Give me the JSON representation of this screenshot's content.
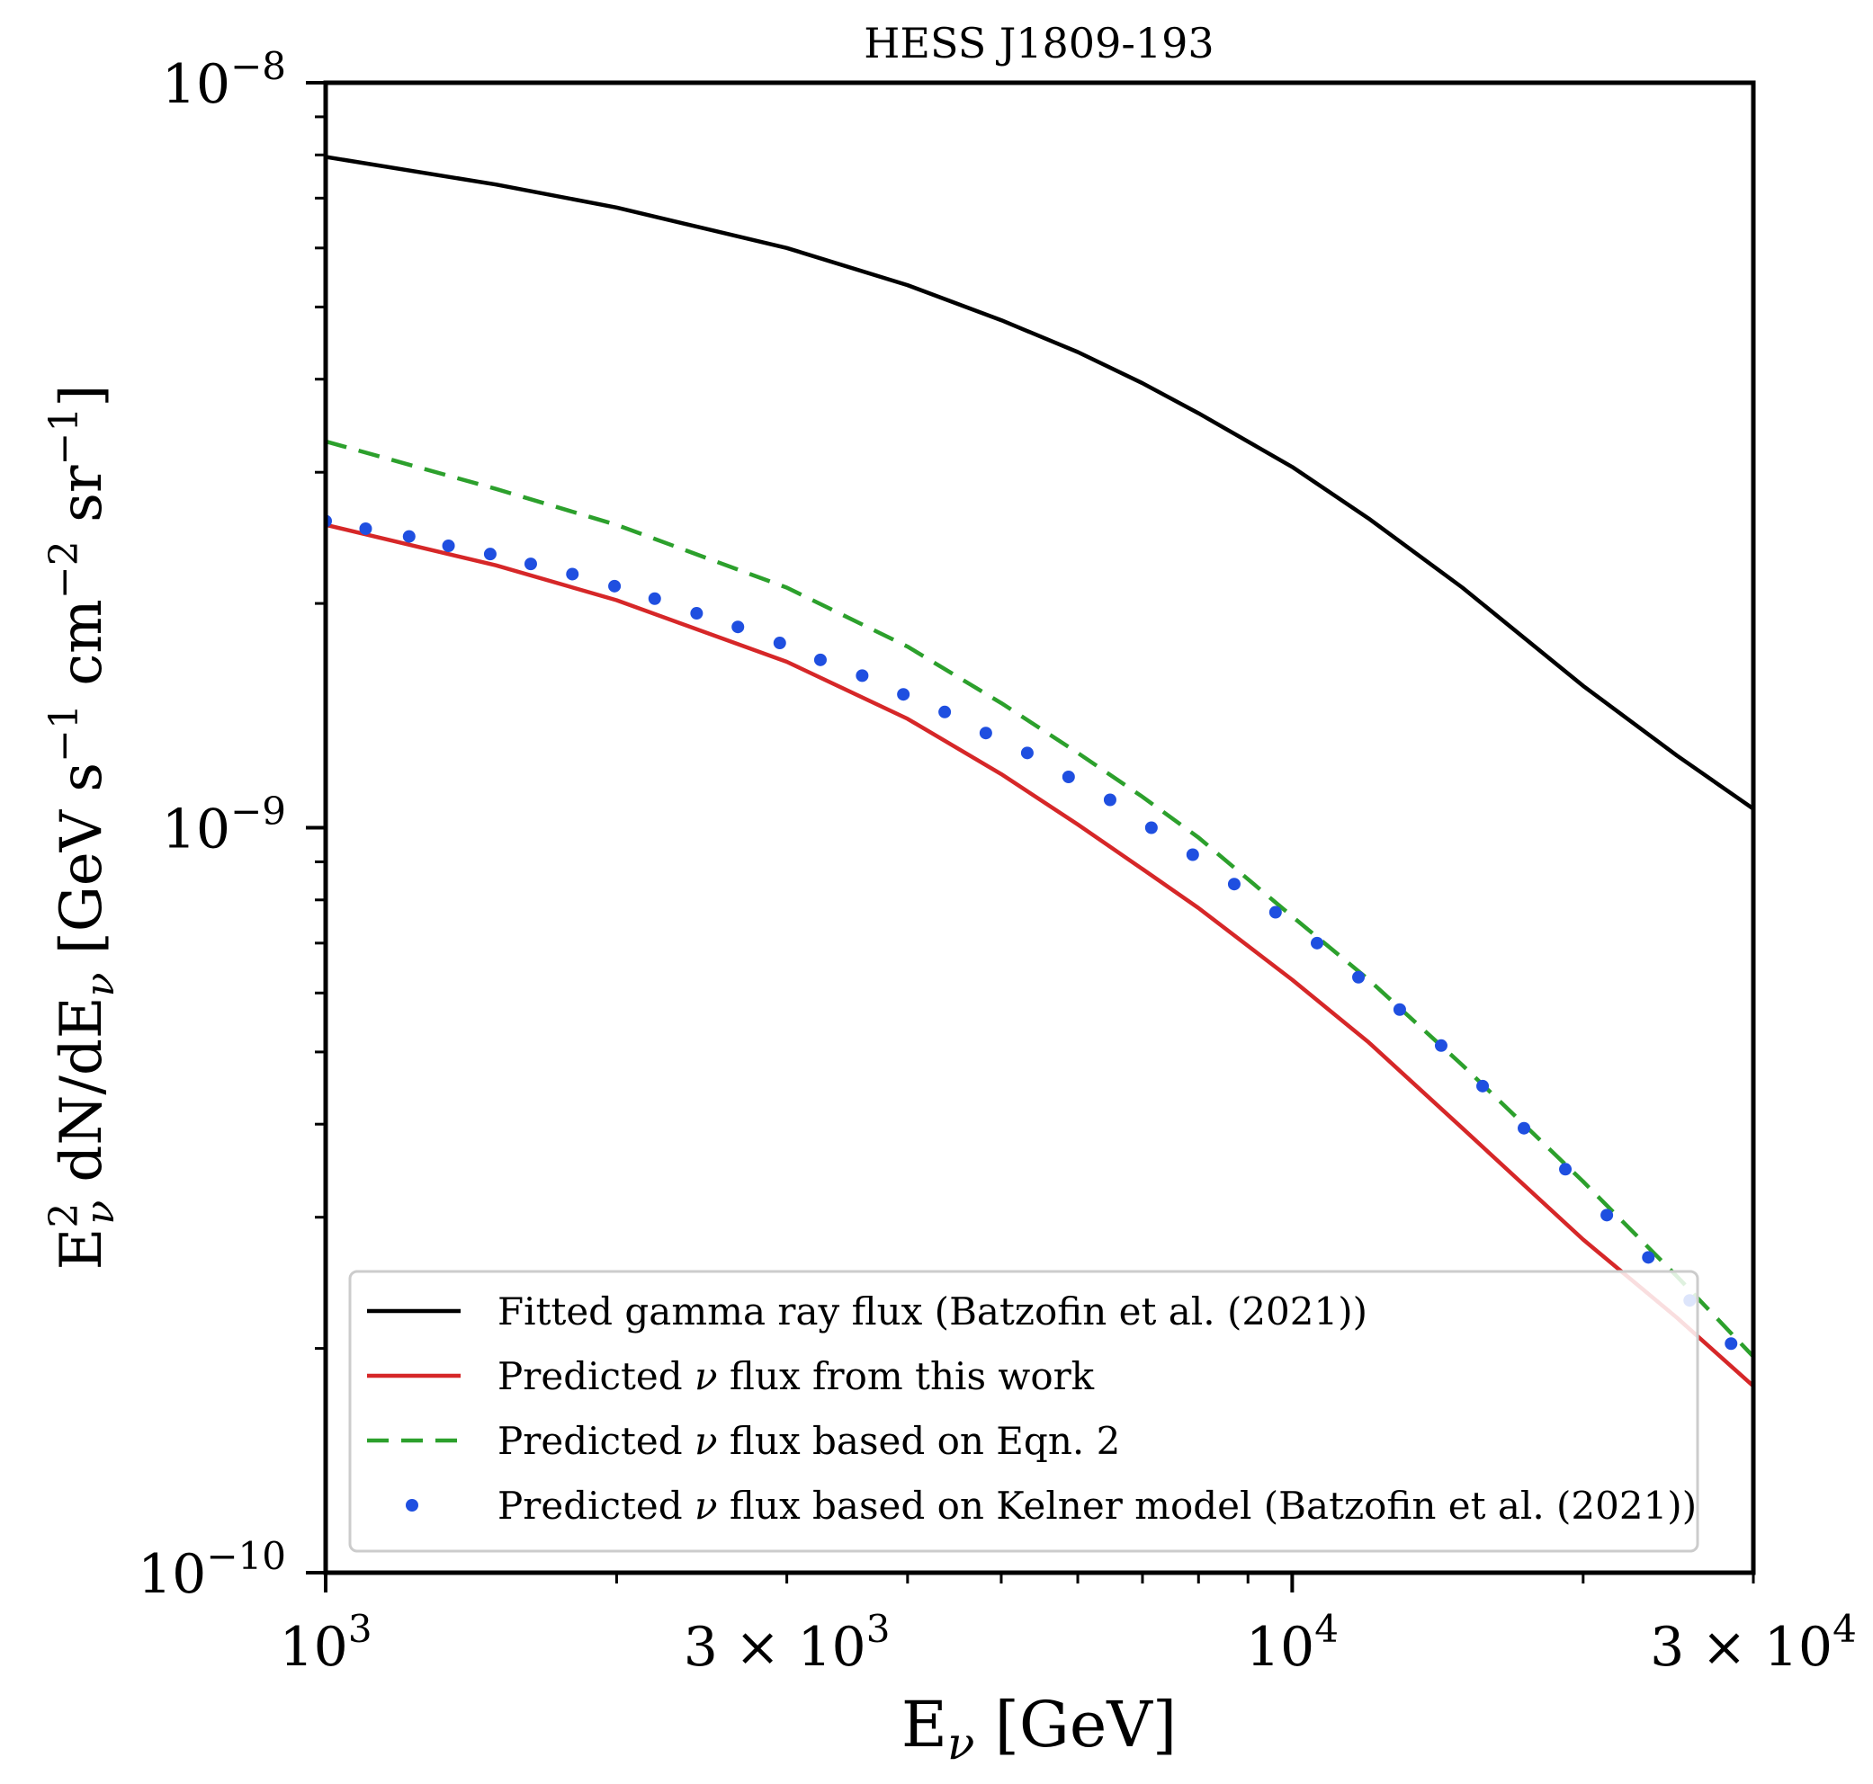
{
  "chart_data": {
    "type": "line",
    "title": "HESS J1809-193",
    "xlabel": "E",
    "xlabel_sub": "ν",
    "xlabel_unit": " [GeV]",
    "ylabel_main": "E",
    "ylabel_sup": "2",
    "ylabel_sub": "ν",
    "ylabel_mid": " dN/dE",
    "ylabel_sub2": "ν",
    "ylabel_unit_a": " [GeV s",
    "ylabel_exp1": "−1",
    "ylabel_unit_b": " cm",
    "ylabel_exp2": "−2",
    "ylabel_unit_c": " sr",
    "ylabel_exp3": "−1",
    "ylabel_close": "]",
    "xscale": "log",
    "yscale": "log",
    "xlim": [
      1000,
      30000
    ],
    "ylim": [
      1e-10,
      1e-08
    ],
    "x_ticks": [
      {
        "value": 1000,
        "mant": "",
        "base": "10",
        "exp": "3"
      },
      {
        "value": 3000,
        "mant": "3 × ",
        "base": "10",
        "exp": "3"
      },
      {
        "value": 10000,
        "mant": "",
        "base": "10",
        "exp": "4"
      },
      {
        "value": 30000,
        "mant": "3 × ",
        "base": "10",
        "exp": "4"
      }
    ],
    "y_ticks": [
      {
        "value": 1e-08,
        "base": "10",
        "exp": "−8"
      },
      {
        "value": 1e-09,
        "base": "10",
        "exp": "−9"
      },
      {
        "value": 1e-10,
        "base": "10",
        "exp": "−10"
      }
    ],
    "legend_position": "lower-right",
    "series": [
      {
        "name": "Fitted gamma ray flux (Batzofin et al. (2021))",
        "label_pre": "Fitted gamma ray flux (Batzofin et al. (2021))",
        "label_sym": "",
        "label_post": "",
        "color": "#000000",
        "style": "solid",
        "x": [
          1000,
          1500,
          2000,
          3000,
          4000,
          5000,
          6000,
          7000,
          8000,
          10000,
          12000,
          15000,
          20000,
          25000,
          30000
        ],
        "y": [
          7.95e-09,
          7.3e-09,
          6.8e-09,
          6e-09,
          5.35e-09,
          4.8e-09,
          4.35e-09,
          3.95e-09,
          3.6e-09,
          3.05e-09,
          2.6e-09,
          2.1e-09,
          1.55e-09,
          1.25e-09,
          1.06e-09
        ]
      },
      {
        "name": "Predicted ν flux from this work",
        "label_pre": "Predicted ",
        "label_sym": "ν",
        "label_post": " flux from this work",
        "color": "#d62728",
        "style": "solid",
        "x": [
          1000,
          1500,
          2000,
          3000,
          4000,
          5000,
          6000,
          7000,
          8000,
          10000,
          12000,
          15000,
          20000,
          25000,
          30000
        ],
        "y": [
          2.55e-09,
          2.25e-09,
          2.02e-09,
          1.67e-09,
          1.4e-09,
          1.18e-09,
          1.01e-09,
          8.8e-10,
          7.8e-10,
          6.25e-10,
          5.15e-10,
          3.95e-10,
          2.8e-10,
          2.2e-10,
          1.78e-10
        ]
      },
      {
        "name": "Predicted ν flux based on Eqn. 2",
        "label_pre": "Predicted ",
        "label_sym": "ν",
        "label_post": " flux based on Eqn. 2",
        "color": "#2ca02c",
        "style": "dashed",
        "x": [
          1000,
          1500,
          2000,
          3000,
          4000,
          5000,
          6000,
          7000,
          8000,
          10000,
          12000,
          15000,
          20000,
          25000,
          30000
        ],
        "y": [
          3.3e-09,
          2.85e-09,
          2.55e-09,
          2.1e-09,
          1.75e-09,
          1.47e-09,
          1.26e-09,
          1.1e-09,
          9.7e-10,
          7.6e-10,
          6.25e-10,
          4.8e-10,
          3.35e-10,
          2.5e-10,
          1.95e-10
        ]
      },
      {
        "name": "Predicted ν flux based on Kelner model (Batzofin et al. (2021))",
        "label_pre": "Predicted ",
        "label_sym": "ν",
        "label_post": " flux based on Kelner model (Batzofin et al. (2021))",
        "color": "#1f4fe0",
        "style": "dots",
        "x": [
          1000,
          1100,
          1220,
          1340,
          1480,
          1630,
          1800,
          1990,
          2190,
          2420,
          2670,
          2950,
          3250,
          3590,
          3960,
          4370,
          4820,
          5320,
          5870,
          6480,
          7150,
          7890,
          8710,
          9610,
          10610,
          11710,
          12920,
          14260,
          15740,
          17370,
          19170,
          21160,
          23360,
          25780,
          28450
        ],
        "y": [
          2.58e-09,
          2.52e-09,
          2.46e-09,
          2.39e-09,
          2.33e-09,
          2.26e-09,
          2.19e-09,
          2.11e-09,
          2.03e-09,
          1.94e-09,
          1.86e-09,
          1.77e-09,
          1.68e-09,
          1.6e-09,
          1.51e-09,
          1.43e-09,
          1.34e-09,
          1.26e-09,
          1.17e-09,
          1.09e-09,
          1e-09,
          9.2e-10,
          8.4e-10,
          7.7e-10,
          7e-10,
          6.3e-10,
          5.7e-10,
          5.1e-10,
          4.5e-10,
          3.95e-10,
          3.48e-10,
          3.02e-10,
          2.65e-10,
          2.32e-10,
          2.03e-10
        ]
      }
    ]
  }
}
